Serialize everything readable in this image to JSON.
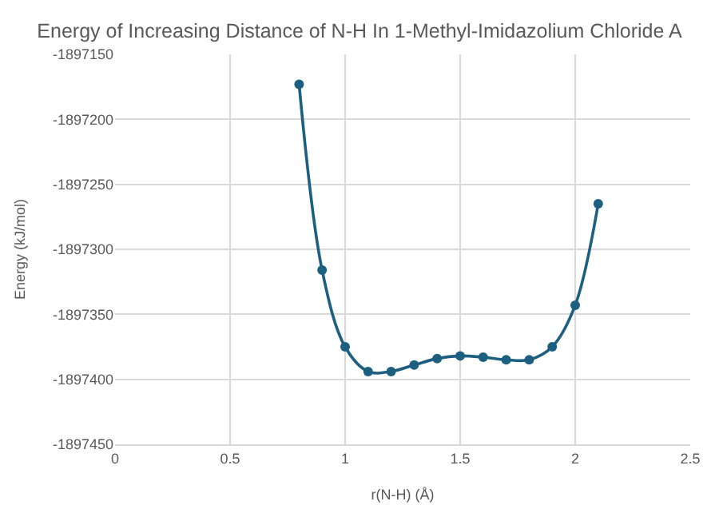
{
  "chart_data": {
    "type": "line",
    "title": "Energy of Increasing Distance of N-H In 1-Methyl-Imidazolium Chloride A",
    "xlabel": "r(N-H) (Å)",
    "ylabel": "Energy (kJ/mol)",
    "x": [
      0.8,
      0.9,
      1.0,
      1.1,
      1.2,
      1.3,
      1.4,
      1.5,
      1.6,
      1.7,
      1.8,
      1.9,
      2.0,
      2.1
    ],
    "series": [
      {
        "color": "#1c5f80",
        "values": [
          -1897173,
          -1897316,
          -1897375,
          -1897394,
          -1897394,
          -1897389,
          -1897384,
          -1897382,
          -1897383,
          -1897385,
          -1897385,
          -1897375,
          -1897343,
          -1897265
        ]
      }
    ],
    "xlim": [
      0,
      2.5
    ],
    "xticks": [
      0,
      0.5,
      1,
      1.5,
      2,
      2.5
    ],
    "ylim": [
      -1897450,
      -1897150
    ],
    "yticks": [
      -1897450,
      -1897400,
      -1897350,
      -1897300,
      -1897250,
      -1897200,
      -1897150
    ],
    "grid": true,
    "legend": false,
    "marker": "circle",
    "line_style": "solid"
  }
}
